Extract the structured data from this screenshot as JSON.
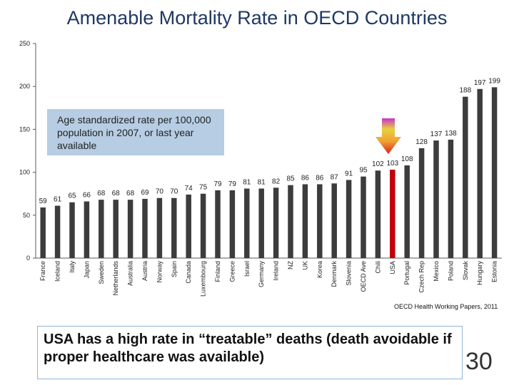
{
  "slide": {
    "title": "Amenable Mortality Rate in OECD Countries",
    "note": "Age standardized rate per 100,000 population in 2007, or last year available",
    "source": "OECD Health Working Papers, 2011",
    "callout": "USA has a high rate in “treatable” deaths (death avoidable if proper healthcare was available)",
    "page_number": "30"
  },
  "chart_data": {
    "type": "bar",
    "title": "Amenable Mortality Rate in OECD Countries",
    "xlabel": "",
    "ylabel": "",
    "ylim": [
      0,
      250
    ],
    "yticks": [
      0,
      50,
      100,
      150,
      200,
      250
    ],
    "grid": false,
    "categories": [
      "France",
      "Iceland",
      "Italy",
      "Japan",
      "Sweden",
      "Netherlands",
      "Australia",
      "Austria",
      "Norway",
      "Spain",
      "Canada",
      "Luxembourg",
      "Finland",
      "Greece",
      "Israel",
      "Germany",
      "Ireland",
      "NZ",
      "UK",
      "Korea",
      "Denmark",
      "Slovenia",
      "OECD Ave",
      "Chili",
      "USA",
      "Portugal",
      "Czech Rep",
      "Mexico",
      "Poland",
      "Slovak",
      "Hungary",
      "Estonia"
    ],
    "values": [
      59,
      61,
      65,
      66,
      68,
      68,
      68,
      69,
      70,
      70,
      74,
      75,
      79,
      79,
      81,
      81,
      82,
      85,
      86,
      86,
      87,
      91,
      95,
      102,
      103,
      108,
      128,
      137,
      138,
      188,
      197,
      199
    ],
    "highlight": "USA",
    "colors": {
      "bar": "#3c3c3c",
      "highlight": "#c0000b",
      "axis": "#5a5a5a"
    }
  }
}
